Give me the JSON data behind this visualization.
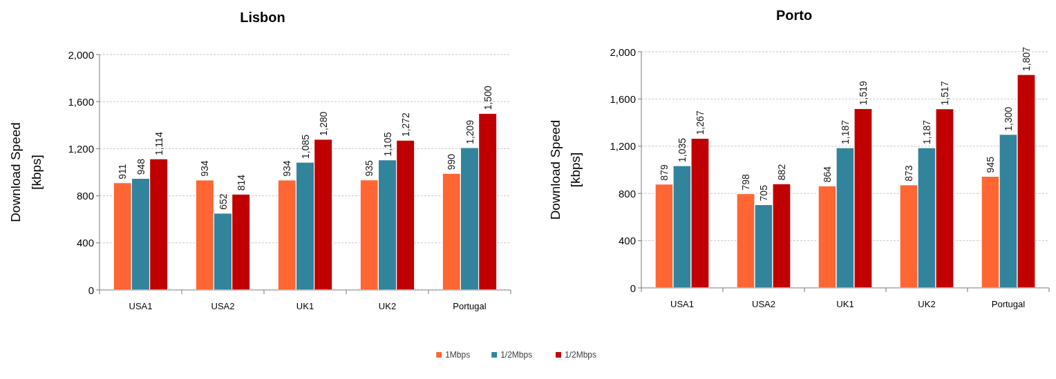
{
  "chart_data": [
    {
      "type": "bar",
      "title": "Lisbon",
      "ylabel": "Download Speed\n[kbps]",
      "categories": [
        "USA1",
        "USA2",
        "UK1",
        "UK2",
        "Portugal"
      ],
      "series": [
        {
          "name": "1Mbps",
          "color": "#ff6633",
          "values": [
            911,
            934,
            934,
            935,
            990
          ],
          "value_labels": [
            "911",
            "934",
            "934",
            "935",
            "990"
          ]
        },
        {
          "name": "1/2Mbps",
          "color": "#31849b",
          "values": [
            948,
            652,
            1085,
            1105,
            1209
          ],
          "value_labels": [
            "948",
            "652",
            "1,085",
            "1,105",
            "1,209"
          ]
        },
        {
          "name": "1/2Mbps",
          "color": "#c00000",
          "values": [
            1114,
            814,
            1280,
            1272,
            1500
          ],
          "value_labels": [
            "1,114",
            "814",
            "1,280",
            "1,272",
            "1,500"
          ]
        }
      ],
      "ylim": [
        0,
        2000
      ],
      "yticks": [
        0,
        400,
        800,
        {
          "value": 1200,
          "label": "1,200"
        },
        {
          "value": 1600,
          "label": "1,600"
        },
        {
          "value": 2000,
          "label": "2,000"
        }
      ],
      "grid": "y",
      "legend": "bottom"
    },
    {
      "type": "bar",
      "title": "Porto",
      "ylabel": "Download Speed\n[kbps]",
      "categories": [
        "USA1",
        "USA2",
        "UK1",
        "UK2",
        "Portugal"
      ],
      "series": [
        {
          "color": "#ff6633",
          "values": [
            879,
            798,
            864,
            873,
            945
          ],
          "value_labels": [
            "879",
            "798",
            "864",
            "873",
            "945"
          ]
        },
        {
          "color": "#31849b",
          "values": [
            1035,
            705,
            1187,
            1187,
            1300
          ],
          "value_labels": [
            "1,035",
            "705",
            "1,187",
            "1,187",
            "1,300"
          ]
        },
        {
          "color": "#c00000",
          "values": [
            1267,
            882,
            1519,
            1517,
            1807
          ],
          "value_labels": [
            "1,267",
            "882",
            "1,519",
            "1,517",
            "1,807"
          ]
        }
      ],
      "ylim": [
        0,
        2000
      ],
      "yticks": [
        0,
        400,
        800,
        {
          "value": 1200,
          "label": "1,200"
        },
        {
          "value": 1600,
          "label": "1,600"
        },
        {
          "value": 2000,
          "label": "2,000"
        }
      ],
      "grid": "y"
    }
  ]
}
